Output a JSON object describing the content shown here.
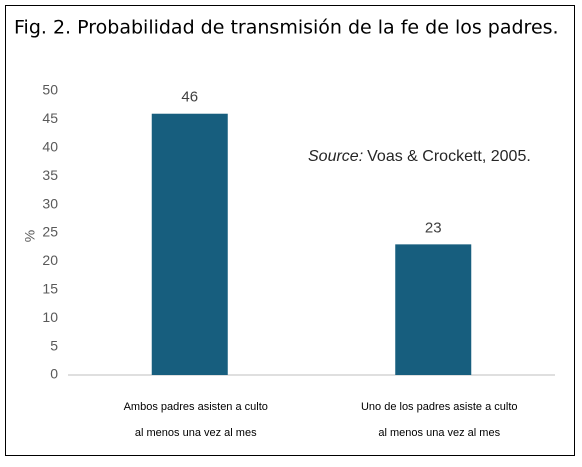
{
  "chart_data": {
    "type": "bar",
    "title": "Fig. 2. Probabilidad de transmisión de la fe de los padres.",
    "y_label": "%",
    "annotation": {
      "source_label": "Source:",
      "text": "Voas & Crockett, 2005."
    },
    "categories": [
      [
        "Ambos padres asisten a culto",
        "al menos una vez al mes"
      ],
      [
        "Uno de los padres asiste a culto",
        "al menos una vez al mes"
      ]
    ],
    "values": [
      46,
      23
    ],
    "color": "#175e7e",
    "ylim": [
      0,
      50
    ],
    "yticks": [
      0,
      5,
      10,
      15,
      20,
      25,
      30,
      35,
      40,
      45,
      50
    ],
    "grid": false
  }
}
